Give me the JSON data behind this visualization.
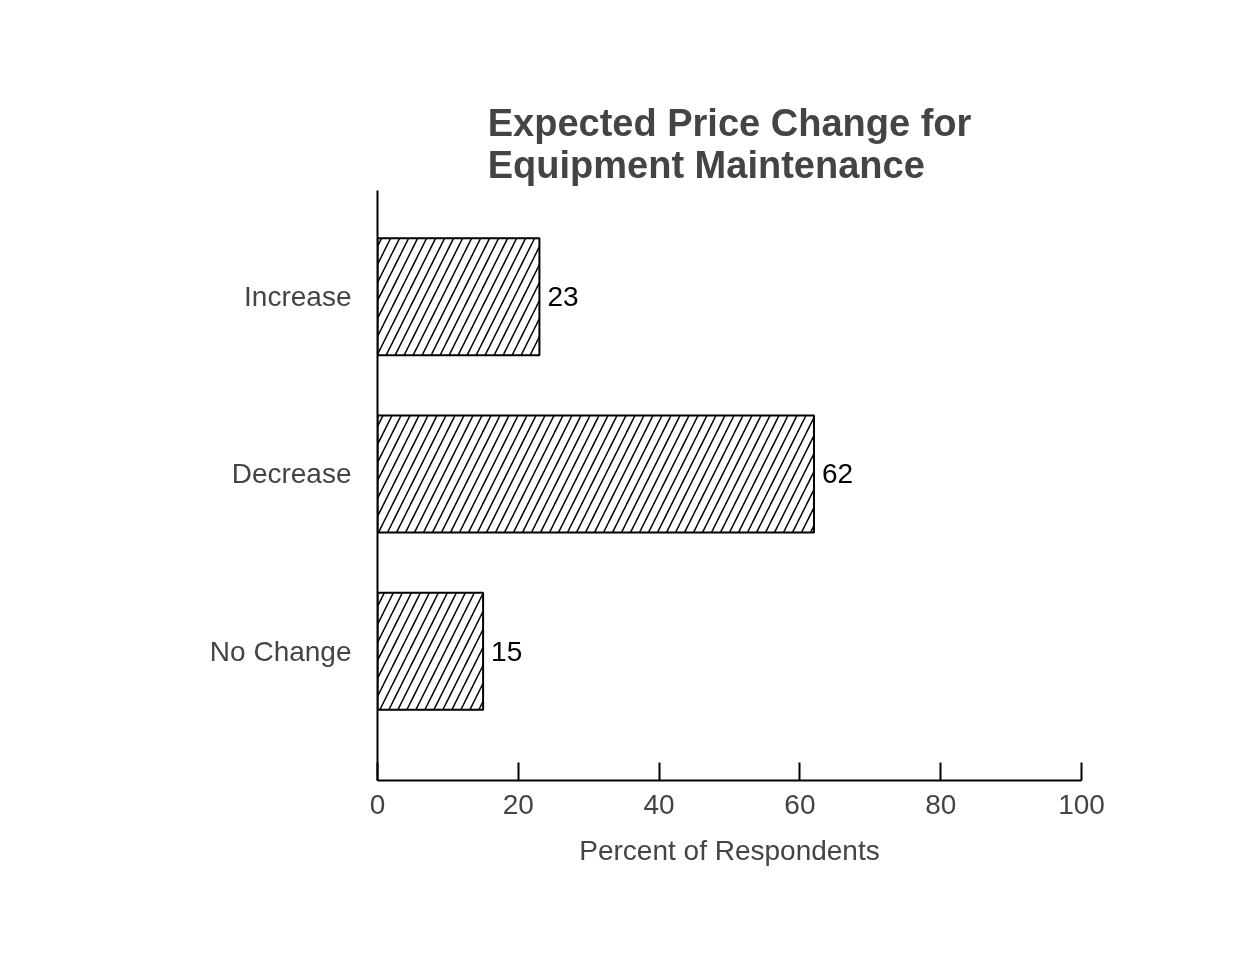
{
  "chart_data": {
    "type": "bar",
    "orientation": "horizontal",
    "title": "Expected Price Change for\nEquipment Maintenance",
    "xlabel": "Percent of Respondents",
    "categories": [
      "Increase",
      "Decrease",
      "No Change"
    ],
    "values": [
      23,
      62,
      15
    ],
    "color": "#000000",
    "xlim": [
      0,
      100
    ],
    "xticks": [
      0,
      20,
      40,
      60,
      80,
      100
    ],
    "grid": false,
    "data_labels": true
  }
}
